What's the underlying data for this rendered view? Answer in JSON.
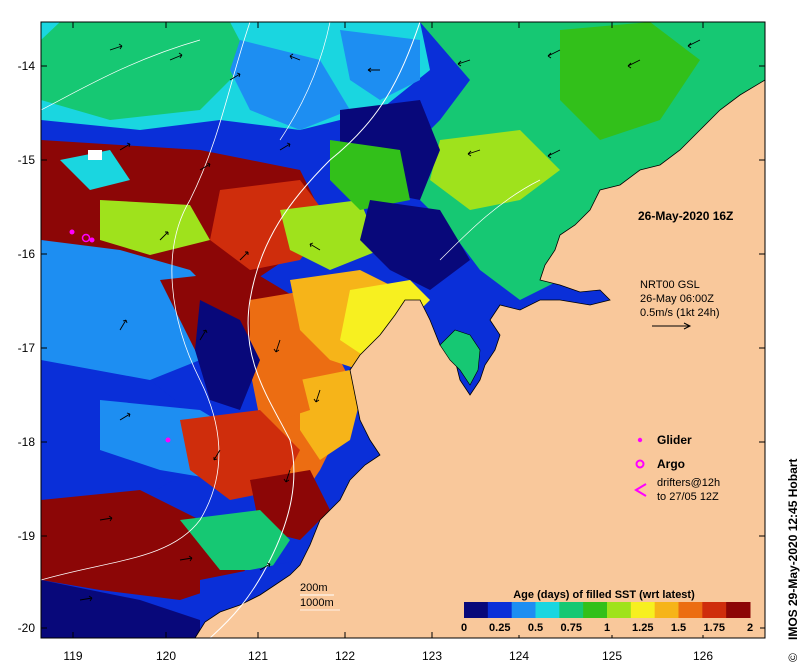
{
  "map": {
    "colors": {
      "land": "#f9c89b",
      "coast_outline": "#000000",
      "contour": "#ffffff",
      "frame": "#000000",
      "glider": "#ff00ff",
      "argo": "#ff00ff",
      "drifter": "#ff00ff"
    },
    "lon_ticks": [
      "119",
      "120",
      "121",
      "122",
      "123",
      "124",
      "125",
      "126"
    ],
    "lat_ticks": [
      "-14",
      "-15",
      "-16",
      "-17",
      "-18",
      "-19",
      "-20"
    ],
    "timestamp": "26-May-2020 16Z",
    "current_info": {
      "line1": "NRT00 GSL",
      "line2": "26-May 06:00Z",
      "line3": "0.5m/s (1kt 24h)"
    },
    "legend": {
      "glider": "Glider",
      "argo": "Argo",
      "drifters_line1": "drifters@12h",
      "drifters_line2": "to 27/05 12Z"
    },
    "contours": {
      "c200": "200m",
      "c1000": "1000m"
    },
    "colorbar": {
      "title": "Age (days) of filled SST (wrt latest)",
      "ticks": [
        "0",
        "0.25",
        "0.5",
        "0.75",
        "1",
        "1.25",
        "1.5",
        "1.75",
        "2"
      ],
      "colors": [
        "#08087a",
        "#0a2fd8",
        "#1d8ef2",
        "#1ad6e0",
        "#16c873",
        "#32c01a",
        "#9fe21c",
        "#f7f020",
        "#f6b419",
        "#ec6d12",
        "#cf2d0c",
        "#8c0606"
      ]
    },
    "credit": "IMOS 29-May-2020 12:45 Hobart",
    "credit_symbol": "©"
  }
}
